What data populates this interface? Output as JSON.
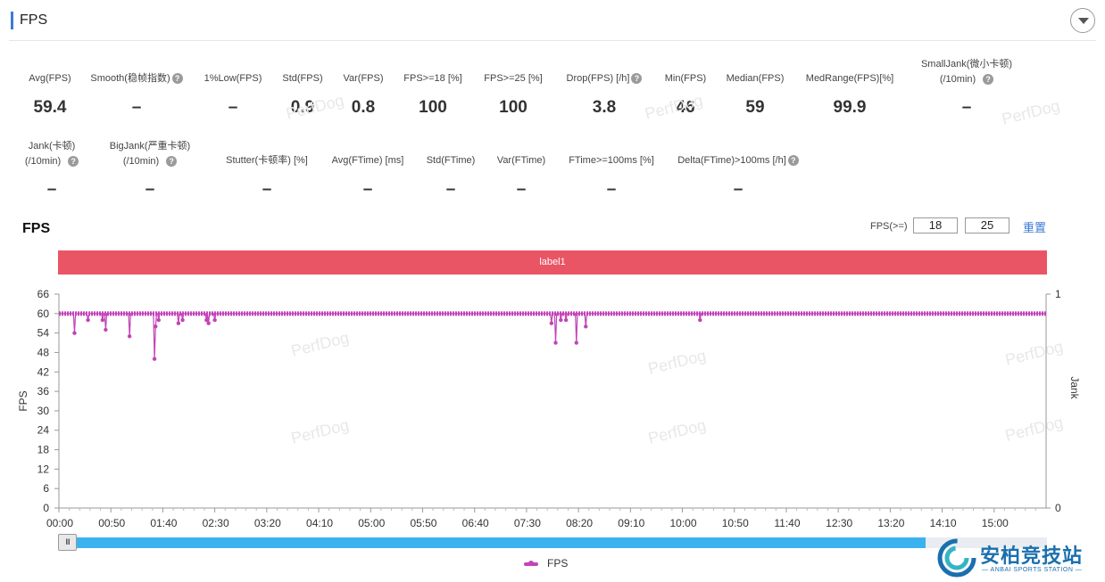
{
  "section": {
    "title": "FPS"
  },
  "metrics_row1": [
    {
      "label": "Avg(FPS)",
      "value": "59.4",
      "help": false
    },
    {
      "label": "Smooth(稳帧指数)",
      "value": "–",
      "help": true
    },
    {
      "label": "1%Low(FPS)",
      "value": "–",
      "help": false
    },
    {
      "label": "Std(FPS)",
      "value": "0.9",
      "help": false
    },
    {
      "label": "Var(FPS)",
      "value": "0.8",
      "help": false
    },
    {
      "label": "FPS>=18 [%]",
      "value": "100",
      "help": false
    },
    {
      "label": "FPS>=25 [%]",
      "value": "100",
      "help": false
    },
    {
      "label": "Drop(FPS) [/h]",
      "value": "3.8",
      "help": true
    },
    {
      "label": "Min(FPS)",
      "value": "46",
      "help": false
    },
    {
      "label": "Median(FPS)",
      "value": "59",
      "help": false
    },
    {
      "label": "MedRange(FPS)[%]",
      "value": "99.9",
      "help": false
    },
    {
      "label": "SmallJank(微小卡顿)",
      "label2": "(/10min)",
      "value": "–",
      "help": true
    }
  ],
  "metrics_row2": [
    {
      "label": "Jank(卡顿)",
      "label2": "(/10min)",
      "value": "–",
      "help": true
    },
    {
      "label": "BigJank(严重卡顿)",
      "label2": "(/10min)",
      "value": "–",
      "help": true
    },
    {
      "label": "Stutter(卡顿率) [%]",
      "value": "–",
      "help": false
    },
    {
      "label": "Avg(FTime) [ms]",
      "value": "–",
      "help": false
    },
    {
      "label": "Std(FTime)",
      "value": "–",
      "help": false
    },
    {
      "label": "Var(FTime)",
      "value": "–",
      "help": false
    },
    {
      "label": "FTime>=100ms [%]",
      "value": "–",
      "help": false
    },
    {
      "label": "Delta(FTime)>100ms [/h]",
      "value": "–",
      "help": true
    }
  ],
  "watermark": "PerfDog",
  "controls": {
    "fps_label": "FPS(>=)",
    "threshold1": "18",
    "threshold2": "25",
    "reset": "重置"
  },
  "chart_data": {
    "type": "line",
    "title": "FPS",
    "band_label": "label1",
    "ylabel": "FPS",
    "y2label": "Jank",
    "ylim": [
      0,
      66
    ],
    "yticks": [
      "0",
      "6",
      "12",
      "18",
      "24",
      "30",
      "36",
      "42",
      "48",
      "54",
      "60",
      "66"
    ],
    "y2lim": [
      0,
      1
    ],
    "y2ticks": [
      "0",
      "1"
    ],
    "xlim_seconds": [
      0,
      950
    ],
    "xticks": [
      "00:00",
      "00:50",
      "01:40",
      "02:30",
      "03:20",
      "04:10",
      "05:00",
      "05:50",
      "06:40",
      "07:30",
      "08:20",
      "09:10",
      "10:00",
      "10:50",
      "11:40",
      "12:30",
      "13:20",
      "14:10",
      "15:00"
    ],
    "baseline_fps": 60,
    "series": [
      {
        "name": "FPS",
        "color": "#c343b8",
        "dips": [
          {
            "t": 15,
            "fps": 54
          },
          {
            "t": 28,
            "fps": 58
          },
          {
            "t": 42,
            "fps": 58
          },
          {
            "t": 45,
            "fps": 55
          },
          {
            "t": 68,
            "fps": 53
          },
          {
            "t": 92,
            "fps": 46
          },
          {
            "t": 93,
            "fps": 56
          },
          {
            "t": 96,
            "fps": 58
          },
          {
            "t": 115,
            "fps": 57
          },
          {
            "t": 119,
            "fps": 58
          },
          {
            "t": 142,
            "fps": 58
          },
          {
            "t": 144,
            "fps": 57
          },
          {
            "t": 150,
            "fps": 58
          },
          {
            "t": 474,
            "fps": 57
          },
          {
            "t": 478,
            "fps": 51
          },
          {
            "t": 483,
            "fps": 58
          },
          {
            "t": 488,
            "fps": 58
          },
          {
            "t": 498,
            "fps": 51
          },
          {
            "t": 507,
            "fps": 56
          },
          {
            "t": 617,
            "fps": 58
          }
        ]
      }
    ],
    "legend": "bottom-center",
    "grid": false
  },
  "brand": {
    "name": "安柏竞技站",
    "sub": "— ANBAI SPORTS STATION —"
  }
}
